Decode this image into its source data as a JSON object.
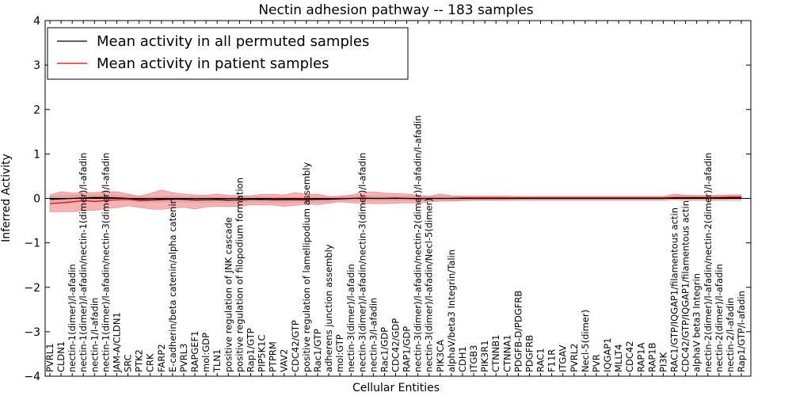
{
  "chart_data": {
    "type": "line",
    "title": "Nectin adhesion pathway -- 183 samples",
    "xlabel": "Cellular Entities",
    "ylabel": "Inferred Activity",
    "ylim": [
      -4,
      4
    ],
    "yticks": [
      -4,
      -3,
      -2,
      -1,
      0,
      1,
      2,
      3,
      4
    ],
    "ytick_labels": [
      "−4",
      "−3",
      "−2",
      "−1",
      "0",
      "1",
      "2",
      "3",
      "4"
    ],
    "grid": false,
    "legend_position": "top-left",
    "colors": {
      "permuted": "#000000",
      "patient": "#e00000",
      "patient_band": "#f08080",
      "permuted_band": "#bbbbbb",
      "zero_line": "#000000"
    },
    "categories": [
      "PVRL1",
      "CLDN1",
      "nectin-1(dimer)/l-afadin",
      "nectin-1(dimer)/l-afadin/nectin-1(dimer)/l-afadin",
      "nectin-1/l-afadin",
      "nectin-1(dimer)/l-afadin/nectin-3(dimer)/l-afadin",
      "JAM-A/CLDN1",
      "SRC",
      "PTK2",
      "CRK",
      "FARP2",
      "E-cadherin/beta catenin/alpha catenin",
      "PVRL3",
      "RAPGEF1",
      "mol:GDP",
      "TLN1",
      "positive regulation of JNK cascade",
      "positive regulation of filopodium formation",
      "Rap1/GTP",
      "PIP5K1C",
      "PTPRM",
      "VAV2",
      "CDC42/GTP",
      "positive regulation of lamellipodium assembly",
      "Rac1/GTP",
      "adherens junction assembly",
      "mol:GTP",
      "nectin-3(dimer)/l-afadin",
      "nectin-3(dimer)/l-afadin/nectin-3(dimer)/l-afadin",
      "nectin-3/l-afadin",
      "Rac1/GDP",
      "CDC42/GDP",
      "RAP1/GDP",
      "nectin-3(dimer)/l-afadin/nectin-2(dimer)/l-afadin/l-afadin",
      "nectin-3(dimer)/l-afadin/Necl-5(dimer)",
      "PIK3CA",
      "alphaV/beta3 Integrin/Talin",
      "CDH1",
      "ITGB3",
      "PIK3R1",
      "CTNNB1",
      "CTNNA1",
      "PDGFB-D/PDGFRB",
      "PDGFRB",
      "RAC1",
      "F11R",
      "ITGAV",
      "PVRL2",
      "Necl-5(dimer)",
      "PVR",
      "IQGAP1",
      "MLLT4",
      "CDC42",
      "RAP1A",
      "RAP1B",
      "PI3K",
      "RAC1/GTP/IQGAP1/filamentous actin",
      "CDC42/GTP/IQGAP1/filamentous actin",
      "alphaV beta3 Integrin",
      "nectin-2(dimer)/l-afadin/nectin-2(dimer)/l-afadin",
      "nectin-2(dimer)/l-afadin",
      "nectin-2/l-afadin",
      "Rap1/GTP/l-afadin"
    ],
    "series": [
      {
        "name": "Mean activity in all permuted samples",
        "color": "#000000",
        "values": [
          -0.02,
          -0.01,
          0.0,
          0.01,
          0.02,
          0.02,
          0.01,
          0.0,
          -0.02,
          -0.03,
          -0.02,
          -0.01,
          -0.02,
          -0.03,
          -0.03,
          -0.03,
          -0.04,
          -0.03,
          -0.02,
          -0.02,
          -0.03,
          -0.03,
          -0.03,
          -0.03,
          -0.02,
          -0.02,
          -0.01,
          0.0,
          0.0,
          0.0,
          0.0,
          0.0,
          0.0,
          0.0,
          0.0,
          0.0,
          0.0,
          0.0,
          0.0,
          0.0,
          0.0,
          0.0,
          0.0,
          0.0,
          0.0,
          0.0,
          0.0,
          0.0,
          0.0,
          0.0,
          0.0,
          0.0,
          0.0,
          0.0,
          0.0,
          0.0,
          0.01,
          0.01,
          0.01,
          0.01,
          0.01,
          0.01,
          0.01
        ],
        "band": [
          0.08,
          0.08,
          0.08,
          0.08,
          0.07,
          0.07,
          0.07,
          0.07,
          0.07,
          0.07,
          0.07,
          0.07,
          0.07,
          0.07,
          0.07,
          0.07,
          0.07,
          0.07,
          0.07,
          0.07,
          0.07,
          0.07,
          0.07,
          0.07,
          0.07,
          0.07,
          0.06,
          0.06,
          0.06,
          0.06,
          0.06,
          0.06,
          0.06,
          0.06,
          0.06,
          0.06,
          0.06,
          0.06,
          0.06,
          0.06,
          0.06,
          0.06,
          0.06,
          0.06,
          0.06,
          0.06,
          0.06,
          0.06,
          0.06,
          0.06,
          0.06,
          0.06,
          0.06,
          0.06,
          0.06,
          0.06,
          0.06,
          0.07,
          0.07,
          0.07,
          0.07,
          0.08,
          0.08
        ]
      },
      {
        "name": "Mean activity in patient samples",
        "color": "#e00000",
        "values": [
          -0.12,
          -0.1,
          -0.08,
          -0.05,
          -0.07,
          -0.05,
          -0.03,
          -0.02,
          -0.05,
          -0.04,
          -0.03,
          -0.02,
          -0.02,
          -0.04,
          -0.03,
          -0.02,
          -0.03,
          -0.04,
          -0.02,
          -0.03,
          -0.01,
          -0.02,
          -0.02,
          -0.01,
          -0.02,
          -0.01,
          0.0,
          0.0,
          0.01,
          0.0,
          0.0,
          0.01,
          0.0,
          -0.01,
          0.0,
          0.0,
          0.0,
          0.01,
          0.01,
          0.01,
          0.01,
          0.01,
          0.01,
          0.01,
          0.01,
          0.01,
          0.01,
          0.01,
          0.01,
          0.01,
          0.01,
          0.01,
          0.01,
          0.01,
          0.01,
          0.01,
          0.02,
          0.02,
          0.02,
          0.02,
          0.02,
          0.03,
          0.03
        ],
        "band_lower": [
          0.18,
          0.2,
          0.22,
          0.22,
          0.2,
          0.18,
          0.18,
          0.15,
          0.15,
          0.2,
          0.22,
          0.2,
          0.18,
          0.2,
          0.16,
          0.16,
          0.15,
          0.14,
          0.12,
          0.12,
          0.14,
          0.16,
          0.14,
          0.12,
          0.12,
          0.1,
          0.08,
          0.1,
          0.12,
          0.12,
          0.12,
          0.12,
          0.1,
          0.1,
          0.08,
          0.06,
          0.06,
          0.06,
          0.05,
          0.05,
          0.05,
          0.05,
          0.04,
          0.04,
          0.04,
          0.04,
          0.04,
          0.04,
          0.04,
          0.04,
          0.04,
          0.04,
          0.04,
          0.04,
          0.04,
          0.04,
          0.04,
          0.05,
          0.05,
          0.05,
          0.05,
          0.05,
          0.05
        ],
        "band_upper": [
          0.2,
          0.25,
          0.2,
          0.18,
          0.2,
          0.2,
          0.18,
          0.12,
          0.1,
          0.15,
          0.22,
          0.15,
          0.12,
          0.12,
          0.1,
          0.12,
          0.1,
          0.1,
          0.08,
          0.12,
          0.1,
          0.1,
          0.15,
          0.1,
          0.12,
          0.05,
          0.05,
          0.08,
          0.12,
          0.15,
          0.12,
          0.1,
          0.1,
          0.08,
          0.05,
          0.1,
          0.06,
          0.04,
          0.04,
          0.04,
          0.04,
          0.04,
          0.03,
          0.03,
          0.03,
          0.03,
          0.03,
          0.03,
          0.03,
          0.03,
          0.03,
          0.03,
          0.03,
          0.03,
          0.03,
          0.03,
          0.08,
          0.05,
          0.04,
          0.04,
          0.05,
          0.05,
          0.05
        ]
      }
    ]
  }
}
